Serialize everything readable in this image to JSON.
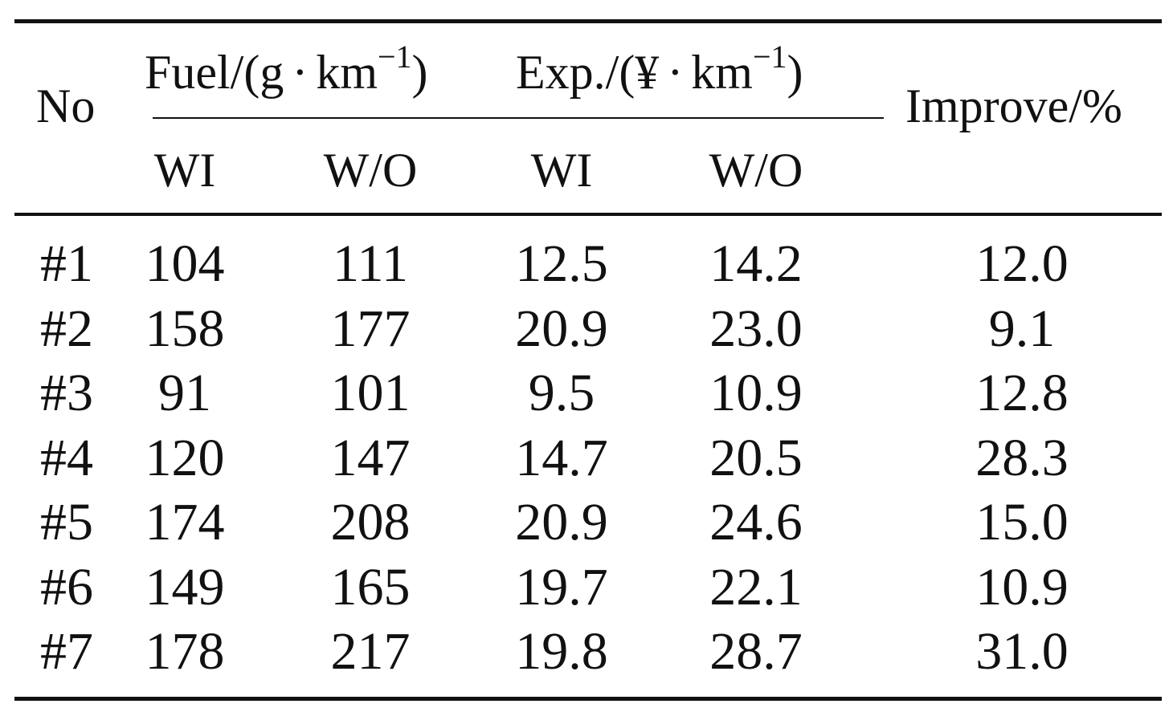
{
  "table": {
    "header": {
      "no": "No",
      "fuel_group": {
        "prefix": "Fuel/(g",
        "dot": "·",
        "unit": "km",
        "exp": "−1",
        "suffix": ")"
      },
      "exp_group": {
        "prefix": "Exp./(¥",
        "dot": "·",
        "unit": "km",
        "exp": "−1",
        "suffix": ")"
      },
      "improve": "Improve/%",
      "sub": [
        "WI",
        "W/O",
        "WI",
        "W/O"
      ]
    },
    "rows": [
      [
        "#1",
        "104",
        "111",
        "12.5",
        "14.2",
        "12.0"
      ],
      [
        "#2",
        "158",
        "177",
        "20.9",
        "23.0",
        "9.1"
      ],
      [
        "#3",
        "91",
        "101",
        "9.5",
        "10.9",
        "12.8"
      ],
      [
        "#4",
        "120",
        "147",
        "14.7",
        "20.5",
        "28.3"
      ],
      [
        "#5",
        "174",
        "208",
        "20.9",
        "24.6",
        "15.0"
      ],
      [
        "#6",
        "149",
        "165",
        "19.7",
        "22.1",
        "10.9"
      ],
      [
        "#7",
        "178",
        "217",
        "19.8",
        "28.7",
        "31.0"
      ]
    ]
  }
}
